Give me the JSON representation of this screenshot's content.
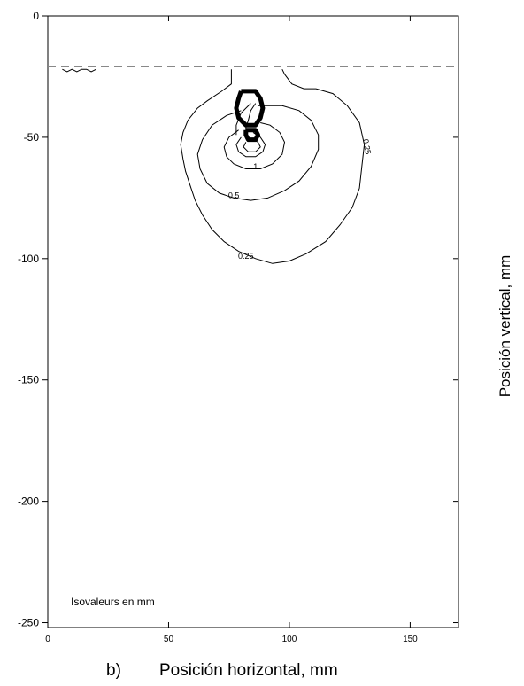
{
  "chart_data": {
    "type": "contour",
    "panel_label": "b)",
    "xlabel": "Posición horizontal, mm",
    "ylabel": "Posición vertical, mm",
    "xlim": [
      0,
      170
    ],
    "ylim": [
      -252,
      0
    ],
    "x_ticks": [
      0,
      50,
      100,
      150
    ],
    "y_ticks": [
      0,
      -50,
      -100,
      -150,
      -200,
      -250
    ],
    "grid": false,
    "annotation": "Isovaleurs en mm",
    "reference_line": {
      "y": -21,
      "style": "dashed"
    },
    "contours": [
      {
        "level": "0.25",
        "label_position": [
          82,
          -99
        ],
        "label_position_2": [
          131,
          -53
        ],
        "points": [
          [
            76,
            -22
          ],
          [
            76,
            -28
          ],
          [
            72,
            -31
          ],
          [
            66,
            -35
          ],
          [
            62,
            -38
          ],
          [
            58,
            -43
          ],
          [
            56,
            -48
          ],
          [
            55,
            -53
          ],
          [
            56,
            -59
          ],
          [
            57,
            -64
          ],
          [
            59,
            -70
          ],
          [
            61,
            -76
          ],
          [
            64,
            -82
          ],
          [
            68,
            -88
          ],
          [
            73,
            -93
          ],
          [
            79,
            -97
          ],
          [
            86,
            -100
          ],
          [
            93,
            -102
          ],
          [
            100,
            -101
          ],
          [
            107,
            -98
          ],
          [
            115,
            -93
          ],
          [
            121,
            -86
          ],
          [
            126,
            -79
          ],
          [
            129,
            -71
          ],
          [
            130,
            -62
          ],
          [
            131,
            -53
          ],
          [
            129,
            -44
          ],
          [
            124,
            -37
          ],
          [
            118,
            -32
          ],
          [
            111,
            -30
          ],
          [
            106,
            -30
          ],
          [
            101,
            -28
          ],
          [
            98,
            -24
          ],
          [
            97,
            -22
          ]
        ]
      },
      {
        "level": "0.5",
        "label_position": [
          77,
          -74
        ],
        "points": [
          [
            80,
            -39
          ],
          [
            74,
            -41
          ],
          [
            68,
            -45
          ],
          [
            64,
            -51
          ],
          [
            62,
            -57
          ],
          [
            63,
            -63
          ],
          [
            66,
            -69
          ],
          [
            71,
            -73
          ],
          [
            77,
            -75
          ],
          [
            84,
            -76
          ],
          [
            91,
            -75
          ],
          [
            98,
            -72
          ],
          [
            104,
            -68
          ],
          [
            109,
            -62
          ],
          [
            112,
            -55
          ],
          [
            112,
            -49
          ],
          [
            109,
            -43
          ],
          [
            104,
            -39
          ],
          [
            97,
            -37
          ],
          [
            91,
            -37
          ],
          [
            87,
            -37
          ]
        ]
      },
      {
        "level": "1",
        "label_position": [
          86,
          -62
        ],
        "points": [
          [
            79,
            -47
          ],
          [
            75,
            -50
          ],
          [
            73,
            -54
          ],
          [
            74,
            -58
          ],
          [
            77,
            -61
          ],
          [
            82,
            -63
          ],
          [
            88,
            -63
          ],
          [
            93,
            -61
          ],
          [
            97,
            -57
          ],
          [
            98,
            -52
          ],
          [
            96,
            -48
          ],
          [
            92,
            -45
          ],
          [
            88,
            -44
          ]
        ]
      },
      {
        "level": "inner",
        "points": [
          [
            80,
            -50
          ],
          [
            78,
            -53
          ],
          [
            79,
            -56
          ],
          [
            82,
            -58
          ],
          [
            86,
            -58
          ],
          [
            89,
            -56
          ],
          [
            90,
            -53
          ],
          [
            88,
            -50
          ],
          [
            85,
            -48
          ]
        ]
      },
      {
        "level": "inner",
        "points": [
          [
            82,
            -52
          ],
          [
            81,
            -54
          ],
          [
            83,
            -56
          ],
          [
            86,
            -56
          ],
          [
            88,
            -54
          ],
          [
            87,
            -52
          ],
          [
            85,
            -51
          ]
        ]
      },
      {
        "level": "inner",
        "points": [
          [
            86,
            -36
          ],
          [
            84,
            -39
          ],
          [
            83,
            -43
          ],
          [
            82,
            -46
          ],
          [
            82,
            -49
          ]
        ]
      },
      {
        "level": "inner",
        "points": [
          [
            84,
            -36
          ],
          [
            80,
            -40
          ],
          [
            78,
            -45
          ],
          [
            78,
            -49
          ]
        ]
      },
      {
        "level": "left_edge",
        "points": [
          [
            6,
            -22
          ],
          [
            8,
            -23
          ],
          [
            10,
            -22
          ],
          [
            12,
            -23
          ],
          [
            14,
            -22
          ],
          [
            16,
            -22
          ],
          [
            18,
            -23
          ],
          [
            20,
            -22
          ]
        ]
      }
    ],
    "heavy_contours": [
      {
        "points": [
          [
            80,
            -31
          ],
          [
            86,
            -31
          ],
          [
            88,
            -34
          ],
          [
            89,
            -38
          ],
          [
            88,
            -42
          ],
          [
            86,
            -45
          ],
          [
            82,
            -45
          ],
          [
            79,
            -42
          ],
          [
            78,
            -38
          ],
          [
            79,
            -34
          ],
          [
            80,
            -31
          ]
        ]
      },
      {
        "points": [
          [
            82,
            -47
          ],
          [
            86,
            -47
          ],
          [
            87,
            -49
          ],
          [
            86,
            -51
          ],
          [
            83,
            -51
          ],
          [
            82,
            -49
          ],
          [
            82,
            -47
          ]
        ]
      }
    ]
  }
}
